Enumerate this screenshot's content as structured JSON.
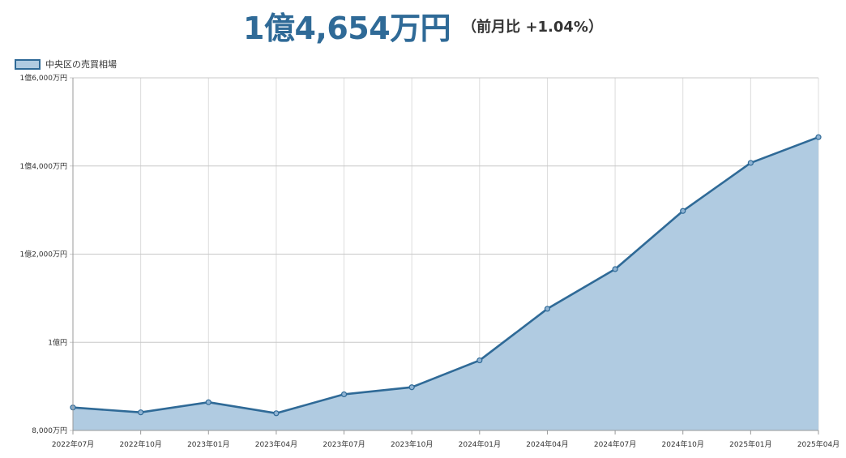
{
  "header": {
    "price": "1億4,654万円",
    "change": "（前月比 +1.04%）"
  },
  "legend": {
    "label": "中央区の売買相場"
  },
  "colors": {
    "line": "#2f6a97",
    "fill": "#b0cbe1",
    "grid": "#dcdcdc",
    "axis": "#999999"
  },
  "chart_data": {
    "type": "area",
    "title": "",
    "xlabel": "",
    "ylabel": "",
    "x": [
      "2022年07月",
      "2022年10月",
      "2023年01月",
      "2023年04月",
      "2023年07月",
      "2023年10月",
      "2024年01月",
      "2024年04月",
      "2024年07月",
      "2024年10月",
      "2025年01月",
      "2025年04月"
    ],
    "series": [
      {
        "name": "中央区の売買相場",
        "values": [
          8520,
          8410,
          8640,
          8390,
          8820,
          8980,
          9590,
          10760,
          11660,
          12980,
          14070,
          14654
        ]
      }
    ],
    "ylim": [
      8000,
      16000
    ],
    "yticks": [
      {
        "value": 8000,
        "label": "8,000万円"
      },
      {
        "value": 10000,
        "label": "1億円"
      },
      {
        "value": 12000,
        "label": "1億2,000万円"
      },
      {
        "value": 14000,
        "label": "1億4,000万円"
      },
      {
        "value": 16000,
        "label": "1億6,000万円"
      }
    ],
    "grid": true,
    "legend_position": "top-left"
  }
}
